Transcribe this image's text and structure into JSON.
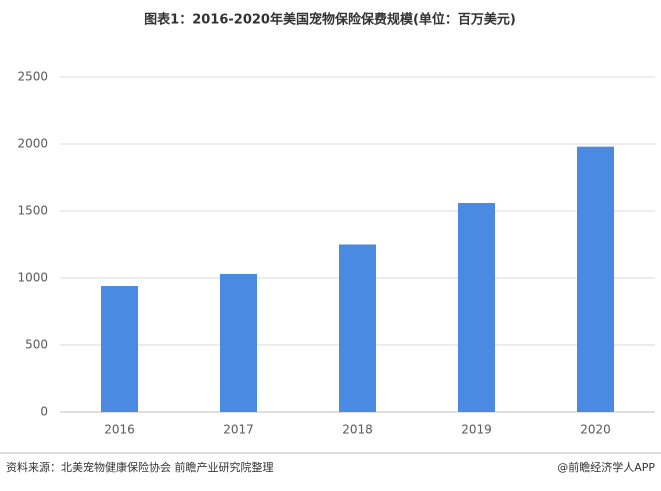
{
  "chart_data": {
    "type": "bar",
    "title": "图表1：2016-2020年美国宠物保险保费规模(单位：百万美元)",
    "categories": [
      "2016",
      "2017",
      "2018",
      "2019",
      "2020"
    ],
    "values": [
      940,
      1030,
      1250,
      1560,
      1980
    ],
    "color": "#4a8ae3",
    "ylim": [
      0,
      2500
    ],
    "yticks": [
      0,
      500,
      1000,
      1500,
      2000,
      2500
    ],
    "grid": true,
    "source": "资料来源：北美宠物健康保险协会 前瞻产业研究院整理",
    "credit": "@前瞻经济学人APP"
  }
}
